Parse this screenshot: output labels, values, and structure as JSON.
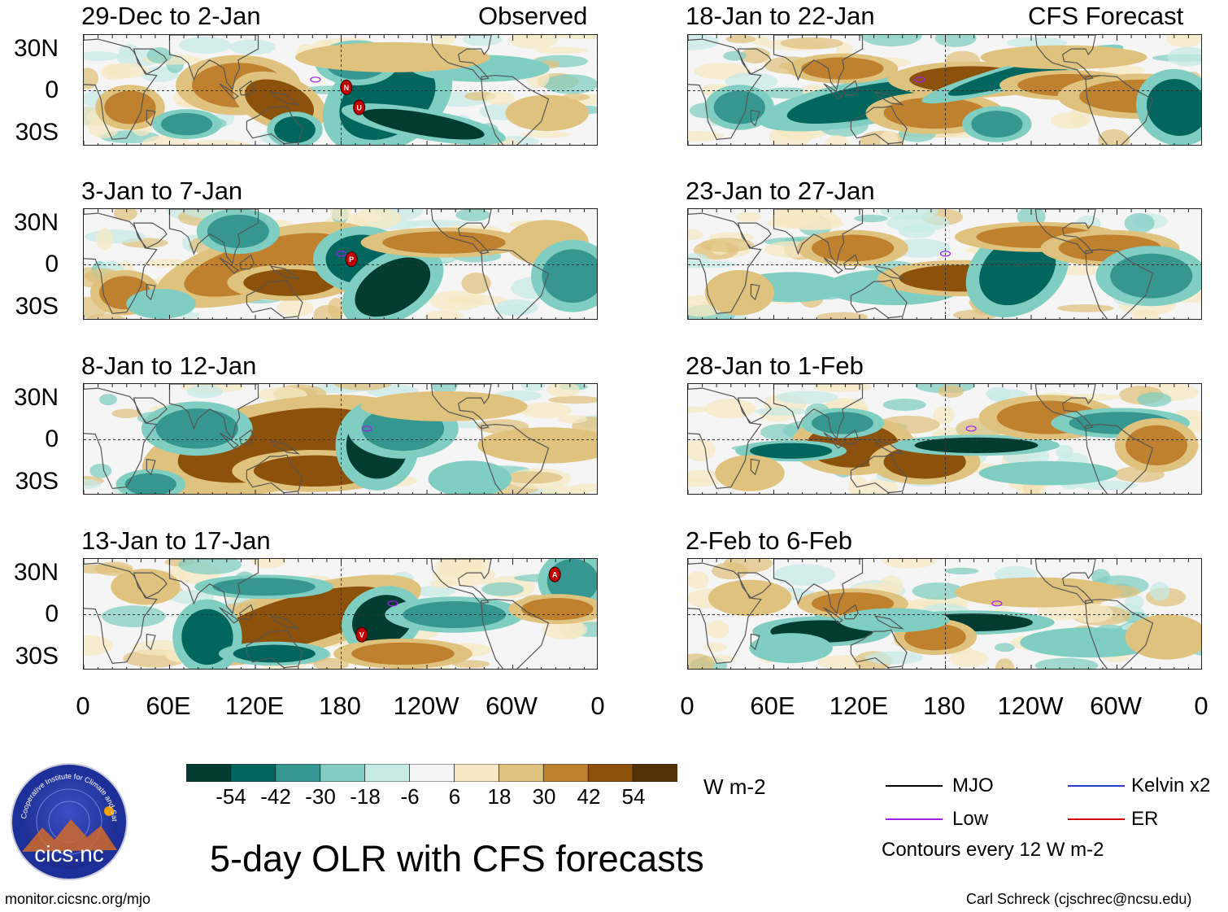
{
  "title": "5-day OLR with CFS forecasts",
  "source_labels": {
    "observed": "Observed",
    "forecast": "CFS Forecast"
  },
  "lat_labels": [
    "30N",
    "0",
    "30S"
  ],
  "lon_labels": [
    "0",
    "60E",
    "120E",
    "180",
    "120W",
    "60W",
    "0"
  ],
  "panels": {
    "observed": [
      "29-Dec to 2-Jan",
      "3-Jan to 7-Jan",
      "8-Jan to 12-Jan",
      "13-Jan to 17-Jan"
    ],
    "forecast": [
      "18-Jan to 22-Jan",
      "23-Jan to 27-Jan",
      "28-Jan to 1-Feb",
      "2-Feb to 6-Feb"
    ]
  },
  "colorbar": {
    "labels": [
      "-54",
      "-42",
      "-30",
      "-18",
      "-6",
      "6",
      "18",
      "30",
      "42",
      "54"
    ],
    "colors": [
      "#003c30",
      "#01665e",
      "#35978f",
      "#80cdc1",
      "#c7eae5",
      "#f5f5f5",
      "#f6e8c3",
      "#dfc27d",
      "#bf812d",
      "#8c510a",
      "#543005"
    ],
    "units": "W m-2"
  },
  "legend": {
    "items": [
      {
        "label": "MJO",
        "color": "#000000"
      },
      {
        "label": "Kelvin x2",
        "color": "#2b3bd6"
      },
      {
        "label": "Low",
        "color": "#a020f0"
      },
      {
        "label": "ER",
        "color": "#d00000"
      }
    ],
    "note": "Contours every 12 W m-2"
  },
  "logo": {
    "text": "cics.nc",
    "ring_text": "Cooperative Institute for Climate and Satellites"
  },
  "footer": {
    "left": "monitor.cicsnc.org/mjo",
    "right": "Carl Schreck (cjschrec@ncsu.edu)"
  },
  "storm_markers": {
    "obs_0": [
      "N",
      "U"
    ],
    "obs_1": [
      "P"
    ],
    "obs_3": [
      "A",
      "V"
    ]
  }
}
